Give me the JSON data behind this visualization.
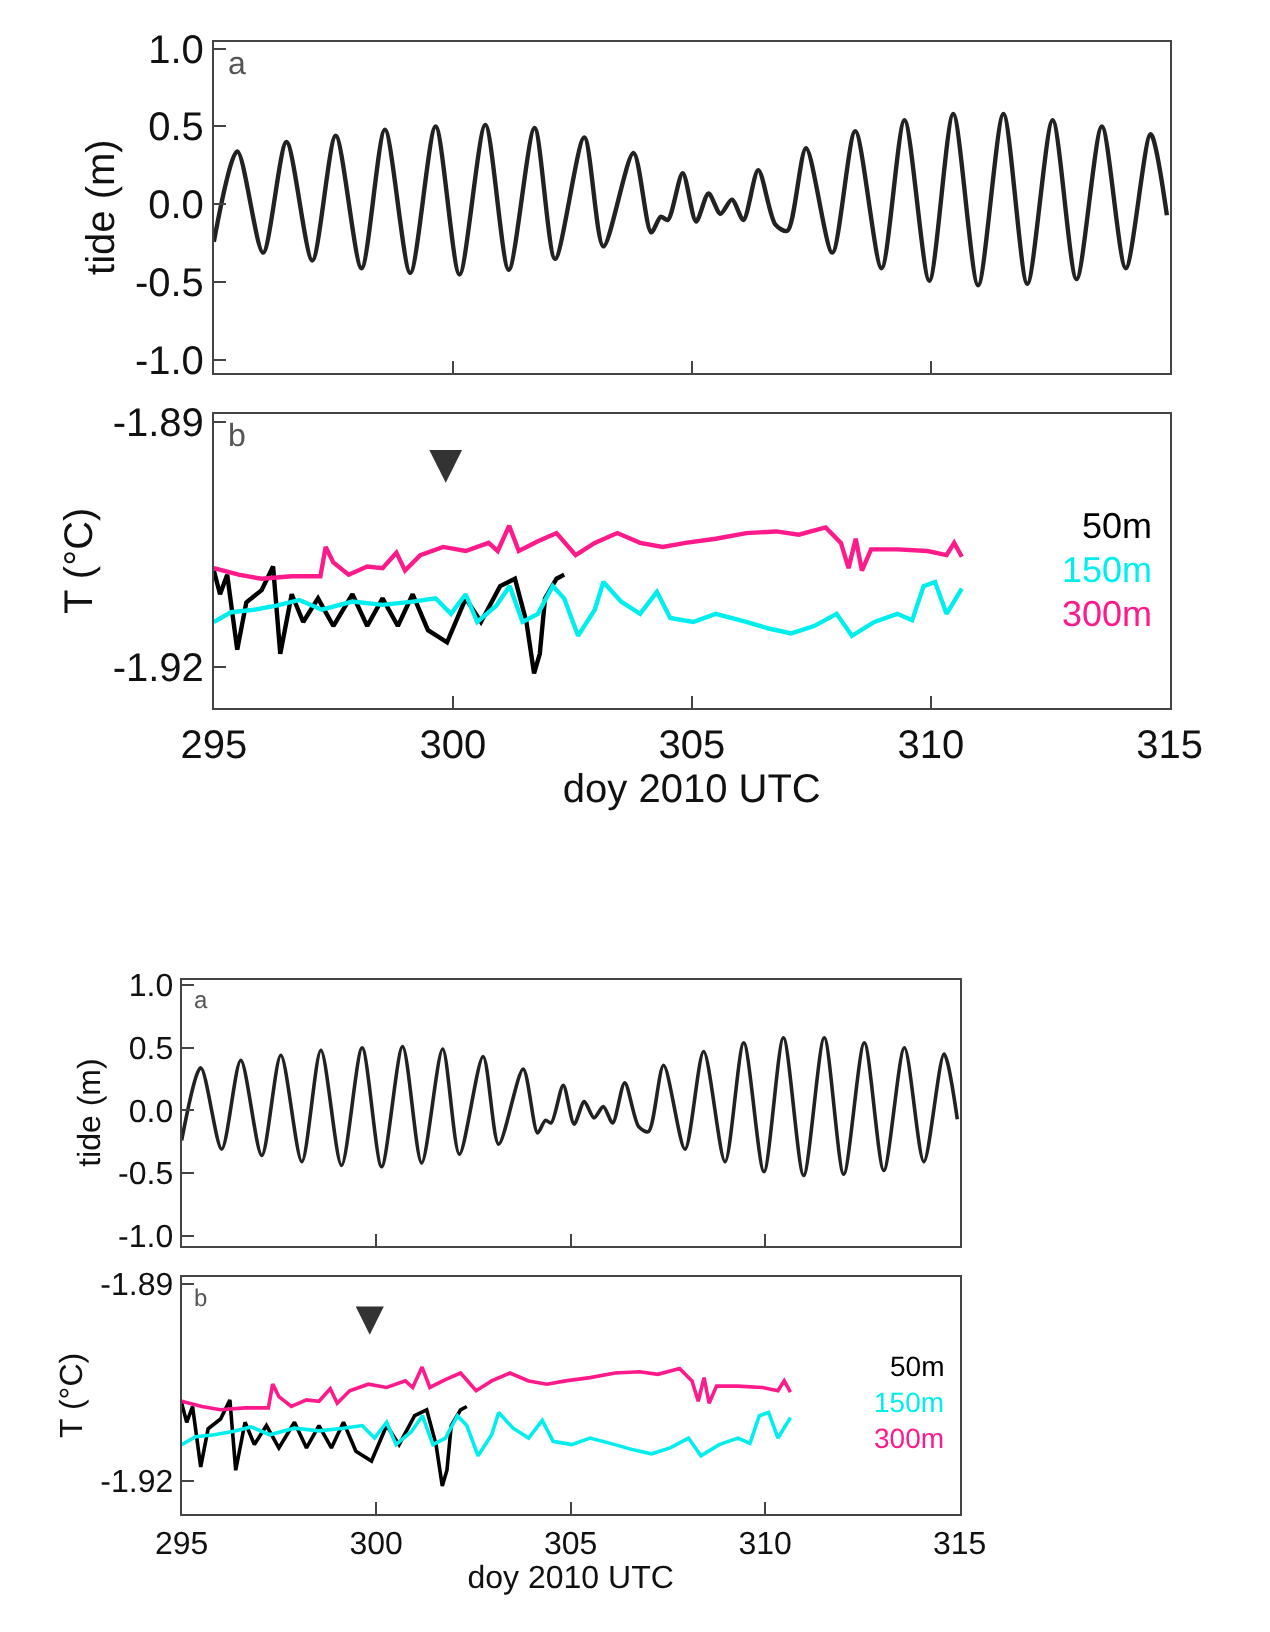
{
  "chart_data": [
    {
      "type": "line",
      "ylabel": "tide (m)",
      "xlim": [
        295,
        315
      ],
      "ylim": [
        -1.08,
        1.045
      ],
      "xticks": [
        {
          "value": 295,
          "label": null
        },
        {
          "value": 300,
          "label": null
        },
        {
          "value": 305,
          "label": null
        },
        {
          "value": 310,
          "label": null
        },
        {
          "value": 315,
          "label": null
        }
      ],
      "yticks": [
        {
          "value": -1.0,
          "label": "-1.0"
        },
        {
          "value": -0.5,
          "label": "-0.5"
        },
        {
          "value": 0.0,
          "label": "0.0"
        },
        {
          "value": 0.5,
          "label": "0.5"
        },
        {
          "value": 1.0,
          "label": "1.0"
        }
      ],
      "tick_labels": "y",
      "annotations": [
        "a"
      ],
      "series": [
        {
          "color": "#222222",
          "x": [
            295.0,
            295.49,
            296.03,
            296.52,
            297.06,
            297.55,
            298.09,
            298.58,
            299.11,
            299.64,
            300.14,
            300.68,
            301.17,
            301.71,
            302.14,
            302.75,
            303.15,
            303.78,
            304.15,
            304.35,
            304.5,
            304.81,
            305.09,
            305.35,
            305.6,
            305.84,
            306.08,
            306.39,
            306.75,
            307.0,
            307.39,
            307.94,
            308.42,
            308.97,
            309.45,
            309.97,
            310.47,
            310.99,
            311.52,
            312.02,
            312.55,
            313.05,
            313.58,
            314.08,
            314.6,
            314.94
          ],
          "values": [
            -0.24,
            0.34,
            -0.31,
            0.4,
            -0.36,
            0.44,
            -0.41,
            0.48,
            -0.44,
            0.5,
            -0.45,
            0.51,
            -0.42,
            0.49,
            -0.35,
            0.43,
            -0.27,
            0.33,
            -0.18,
            -0.08,
            -0.1,
            0.2,
            -0.11,
            0.07,
            -0.06,
            0.03,
            -0.1,
            0.22,
            -0.13,
            -0.17,
            0.36,
            -0.31,
            0.47,
            -0.41,
            0.54,
            -0.49,
            0.58,
            -0.52,
            0.58,
            -0.51,
            0.54,
            -0.48,
            0.5,
            -0.41,
            0.45,
            -0.07
          ]
        }
      ]
    },
    {
      "type": "line",
      "ylabel": "T (°C)",
      "xlabel": "doy 2010 UTC",
      "xlim": [
        295,
        315
      ],
      "ylim": [
        -1.925,
        -1.889
      ],
      "xticks": [
        295,
        300,
        305,
        310,
        315
      ],
      "yticks": [
        {
          "value": -1.92,
          "label": "-1.92"
        },
        {
          "value": -1.89,
          "label": "-1.89"
        }
      ],
      "annotations": [
        "b",
        "▼"
      ],
      "series": [
        {
          "name": "50m",
          "color": "#000000",
          "x": [
            295.0,
            295.13,
            295.28,
            295.49,
            295.68,
            296.0,
            296.24,
            296.39,
            296.63,
            296.87,
            297.18,
            297.5,
            297.9,
            298.21,
            298.53,
            298.85,
            299.16,
            299.48,
            299.88,
            300.27,
            300.59,
            300.99,
            301.3,
            301.54,
            301.7,
            301.82,
            301.93,
            302.17,
            302.33
          ],
          "values": [
            -1.9082,
            -1.9111,
            -1.9087,
            -1.9179,
            -1.9121,
            -1.9106,
            -1.9077,
            -1.9184,
            -1.9111,
            -1.9145,
            -1.9116,
            -1.915,
            -1.9111,
            -1.915,
            -1.9116,
            -1.915,
            -1.9111,
            -1.9155,
            -1.917,
            -1.9116,
            -1.9145,
            -1.9101,
            -1.9092,
            -1.9145,
            -1.9208,
            -1.9184,
            -1.9116,
            -1.9092,
            -1.9087
          ]
        },
        {
          "name": "150m",
          "color": "#00eeee",
          "x": [
            295.0,
            295.36,
            295.84,
            296.31,
            296.79,
            297.26,
            297.9,
            298.53,
            299.16,
            299.64,
            299.96,
            300.27,
            300.51,
            300.91,
            301.19,
            301.46,
            301.78,
            302.09,
            302.33,
            302.62,
            302.97,
            303.15,
            303.52,
            303.92,
            304.27,
            304.55,
            305.03,
            305.5,
            306.14,
            306.61,
            307.08,
            307.56,
            308.03,
            308.35,
            308.82,
            309.3,
            309.61,
            309.85,
            310.09,
            310.33,
            310.65
          ],
          "values": [
            -1.9145,
            -1.9133,
            -1.913,
            -1.9125,
            -1.9118,
            -1.913,
            -1.912,
            -1.9124,
            -1.912,
            -1.9116,
            -1.9135,
            -1.9111,
            -1.9145,
            -1.9125,
            -1.9101,
            -1.9145,
            -1.9135,
            -1.9101,
            -1.9116,
            -1.9162,
            -1.913,
            -1.9096,
            -1.912,
            -1.9135,
            -1.9108,
            -1.914,
            -1.9145,
            -1.9135,
            -1.9145,
            -1.9153,
            -1.9159,
            -1.915,
            -1.9135,
            -1.9162,
            -1.9145,
            -1.9135,
            -1.9143,
            -1.9101,
            -1.9096,
            -1.9135,
            -1.9104
          ]
        },
        {
          "name": "300m",
          "color": "#ff1a8c",
          "x": [
            295.0,
            295.52,
            296.0,
            296.63,
            297.23,
            297.34,
            297.5,
            297.82,
            298.21,
            298.53,
            298.82,
            299.0,
            299.32,
            299.8,
            300.27,
            300.75,
            300.94,
            301.18,
            301.38,
            301.78,
            302.17,
            302.57,
            302.97,
            303.44,
            303.92,
            304.39,
            304.87,
            305.5,
            306.14,
            306.77,
            307.24,
            307.8,
            308.12,
            308.28,
            308.43,
            308.56,
            308.75,
            309.3,
            309.93,
            310.33,
            310.49,
            310.65
          ],
          "values": [
            -1.9079,
            -1.9087,
            -1.9092,
            -1.9089,
            -1.9089,
            -1.9053,
            -1.9072,
            -1.9087,
            -1.9077,
            -1.9079,
            -1.906,
            -1.9082,
            -1.9063,
            -1.9053,
            -1.9058,
            -1.9048,
            -1.9058,
            -1.9027,
            -1.9058,
            -1.9046,
            -1.9036,
            -1.9063,
            -1.9048,
            -1.9036,
            -1.9048,
            -1.9053,
            -1.9048,
            -1.9043,
            -1.9036,
            -1.9034,
            -1.9038,
            -1.9029,
            -1.9048,
            -1.9079,
            -1.9043,
            -1.9082,
            -1.9056,
            -1.9056,
            -1.9058,
            -1.9063,
            -1.9048,
            -1.9065
          ]
        }
      ]
    },
    {
      "type": "line",
      "ylabel": "tide (m)",
      "xlim": [
        295,
        315
      ],
      "ylim": [
        -1.08,
        1.045
      ],
      "xticks": [
        {
          "value": 295,
          "label": null
        },
        {
          "value": 300,
          "label": null
        },
        {
          "value": 305,
          "label": null
        },
        {
          "value": 310,
          "label": null
        },
        {
          "value": 315,
          "label": null
        }
      ],
      "yticks": [
        {
          "value": -1.0,
          "label": "-1.0"
        },
        {
          "value": -0.5,
          "label": "-0.5"
        },
        {
          "value": 0.0,
          "label": "0.0"
        },
        {
          "value": 0.5,
          "label": "0.5"
        },
        {
          "value": 1.0,
          "label": "1.0"
        }
      ],
      "tick_labels": "y",
      "annotations": [
        "a"
      ],
      "series": [
        {
          "color": "#222222",
          "x": [
            295.0,
            295.49,
            296.03,
            296.52,
            297.06,
            297.55,
            298.09,
            298.58,
            299.11,
            299.64,
            300.14,
            300.68,
            301.17,
            301.71,
            302.14,
            302.75,
            303.15,
            303.78,
            304.15,
            304.35,
            304.5,
            304.81,
            305.09,
            305.35,
            305.6,
            305.84,
            306.08,
            306.39,
            306.75,
            307.0,
            307.39,
            307.94,
            308.42,
            308.97,
            309.45,
            309.97,
            310.47,
            310.99,
            311.52,
            312.02,
            312.55,
            313.05,
            313.58,
            314.08,
            314.6,
            314.94
          ],
          "values": [
            -0.24,
            0.34,
            -0.31,
            0.4,
            -0.36,
            0.44,
            -0.41,
            0.48,
            -0.44,
            0.5,
            -0.45,
            0.51,
            -0.42,
            0.49,
            -0.35,
            0.43,
            -0.27,
            0.33,
            -0.18,
            -0.08,
            -0.1,
            0.2,
            -0.11,
            0.07,
            -0.06,
            0.03,
            -0.1,
            0.22,
            -0.13,
            -0.17,
            0.36,
            -0.31,
            0.47,
            -0.41,
            0.54,
            -0.49,
            0.58,
            -0.52,
            0.58,
            -0.51,
            0.54,
            -0.48,
            0.5,
            -0.41,
            0.45,
            -0.07
          ]
        }
      ]
    },
    {
      "type": "line",
      "ylabel": "T (°C)",
      "xlabel": "doy 2010 UTC",
      "xlim": [
        295,
        315
      ],
      "ylim": [
        -1.925,
        -1.889
      ],
      "xticks": [
        295,
        300,
        305,
        310,
        315
      ],
      "yticks": [
        {
          "value": -1.92,
          "label": "-1.92"
        },
        {
          "value": -1.89,
          "label": "-1.89"
        }
      ],
      "annotations": [
        "b",
        "▼"
      ],
      "series": [
        {
          "name": "50m",
          "color": "#000000",
          "x": [
            295.0,
            295.13,
            295.28,
            295.49,
            295.68,
            296.0,
            296.24,
            296.39,
            296.63,
            296.87,
            297.18,
            297.5,
            297.9,
            298.21,
            298.53,
            298.85,
            299.16,
            299.48,
            299.88,
            300.27,
            300.59,
            300.99,
            301.3,
            301.54,
            301.7,
            301.82,
            301.93,
            302.17,
            302.33
          ],
          "values": [
            -1.9082,
            -1.9111,
            -1.9087,
            -1.9179,
            -1.9121,
            -1.9106,
            -1.9077,
            -1.9184,
            -1.9111,
            -1.9145,
            -1.9116,
            -1.915,
            -1.9111,
            -1.915,
            -1.9116,
            -1.915,
            -1.9111,
            -1.9155,
            -1.917,
            -1.9116,
            -1.9145,
            -1.9101,
            -1.9092,
            -1.9145,
            -1.9208,
            -1.9184,
            -1.9116,
            -1.9092,
            -1.9087
          ]
        },
        {
          "name": "150m",
          "color": "#00eeee",
          "x": [
            295.0,
            295.36,
            295.84,
            296.31,
            296.79,
            297.26,
            297.9,
            298.53,
            299.16,
            299.64,
            299.96,
            300.27,
            300.51,
            300.91,
            301.19,
            301.46,
            301.78,
            302.09,
            302.33,
            302.62,
            302.97,
            303.15,
            303.52,
            303.92,
            304.27,
            304.55,
            305.03,
            305.5,
            306.14,
            306.61,
            307.08,
            307.56,
            308.03,
            308.35,
            308.82,
            309.3,
            309.61,
            309.85,
            310.09,
            310.33,
            310.65
          ],
          "values": [
            -1.9145,
            -1.9133,
            -1.913,
            -1.9125,
            -1.9118,
            -1.913,
            -1.912,
            -1.9124,
            -1.912,
            -1.9116,
            -1.9135,
            -1.9111,
            -1.9145,
            -1.9125,
            -1.9101,
            -1.9145,
            -1.9135,
            -1.9101,
            -1.9116,
            -1.9162,
            -1.913,
            -1.9096,
            -1.912,
            -1.9135,
            -1.9108,
            -1.914,
            -1.9145,
            -1.9135,
            -1.9145,
            -1.9153,
            -1.9159,
            -1.915,
            -1.9135,
            -1.9162,
            -1.9145,
            -1.9135,
            -1.9143,
            -1.9101,
            -1.9096,
            -1.9135,
            -1.9104
          ]
        },
        {
          "name": "300m",
          "color": "#ff1a8c",
          "x": [
            295.0,
            295.52,
            296.0,
            296.63,
            297.23,
            297.34,
            297.5,
            297.82,
            298.21,
            298.53,
            298.82,
            299.0,
            299.32,
            299.8,
            300.27,
            300.75,
            300.94,
            301.18,
            301.38,
            301.78,
            302.17,
            302.57,
            302.97,
            303.44,
            303.92,
            304.39,
            304.87,
            305.5,
            306.14,
            306.77,
            307.24,
            307.8,
            308.12,
            308.28,
            308.43,
            308.56,
            308.75,
            309.3,
            309.93,
            310.33,
            310.49,
            310.65
          ],
          "values": [
            -1.9079,
            -1.9087,
            -1.9092,
            -1.9089,
            -1.9089,
            -1.9053,
            -1.9072,
            -1.9087,
            -1.9077,
            -1.9079,
            -1.906,
            -1.9082,
            -1.9063,
            -1.9053,
            -1.9058,
            -1.9048,
            -1.9058,
            -1.9027,
            -1.9058,
            -1.9046,
            -1.9036,
            -1.9063,
            -1.9048,
            -1.9036,
            -1.9048,
            -1.9053,
            -1.9048,
            -1.9043,
            -1.9036,
            -1.9034,
            -1.9038,
            -1.9029,
            -1.9048,
            -1.9079,
            -1.9043,
            -1.9082,
            -1.9056,
            -1.9056,
            -1.9058,
            -1.9063,
            -1.9048,
            -1.9065
          ]
        }
      ]
    }
  ]
}
